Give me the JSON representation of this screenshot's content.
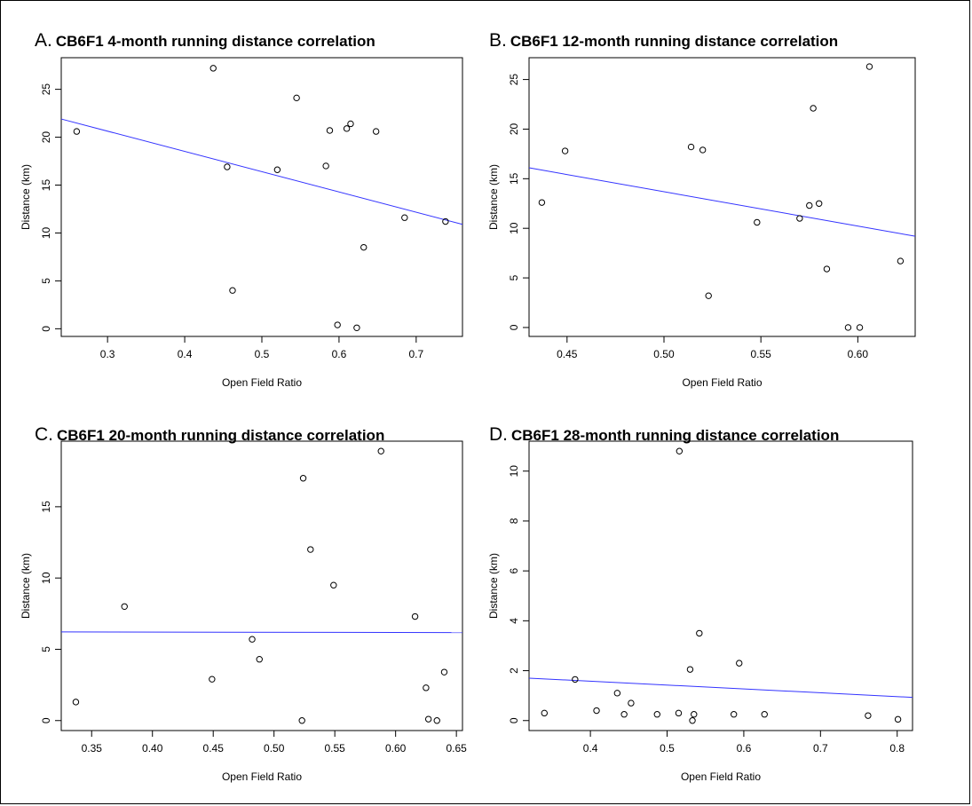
{
  "chart_data": [
    {
      "type": "scatter",
      "letter": "A.",
      "title": "CB6F1 4-month running distance correlation",
      "xlabel": "Open Field Ratio",
      "ylabel": "Distance (km)",
      "xlim": [
        0.24,
        0.76
      ],
      "ylim": [
        -0.8,
        28.3
      ],
      "xticks": [
        0.3,
        0.4,
        0.5,
        0.6,
        0.7
      ],
      "yticks": [
        0,
        5,
        10,
        15,
        20,
        25
      ],
      "xtick_labels": [
        "0.3",
        "0.4",
        "0.5",
        "0.6",
        "0.7"
      ],
      "ytick_labels": [
        "0",
        "5",
        "10",
        "15",
        "20",
        "25"
      ],
      "points": [
        [
          0.26,
          20.6
        ],
        [
          0.437,
          27.2
        ],
        [
          0.455,
          16.9
        ],
        [
          0.462,
          4.0
        ],
        [
          0.52,
          16.6
        ],
        [
          0.545,
          24.1
        ],
        [
          0.583,
          17.0
        ],
        [
          0.588,
          20.7
        ],
        [
          0.598,
          0.4
        ],
        [
          0.61,
          20.9
        ],
        [
          0.615,
          21.4
        ],
        [
          0.623,
          0.1
        ],
        [
          0.632,
          8.5
        ],
        [
          0.648,
          20.6
        ],
        [
          0.685,
          11.6
        ],
        [
          0.738,
          11.2
        ]
      ],
      "fit_line": [
        [
          0.24,
          21.9
        ],
        [
          0.76,
          10.9
        ]
      ],
      "series_color": "#000000",
      "fit_color": "#3333ff",
      "grid": false
    },
    {
      "type": "scatter",
      "letter": "B.",
      "title": "CB6F1 12-month running distance correlation",
      "xlabel": "Open Field Ratio",
      "ylabel": "Distance (km)",
      "xlim": [
        0.4304,
        0.6296
      ],
      "ylim": [
        -0.9,
        27.2
      ],
      "xticks": [
        0.45,
        0.5,
        0.55,
        0.6
      ],
      "yticks": [
        0,
        5,
        10,
        15,
        20,
        25
      ],
      "xtick_labels": [
        "0.45",
        "0.50",
        "0.55",
        "0.60"
      ],
      "ytick_labels": [
        "0",
        "5",
        "10",
        "15",
        "20",
        "25"
      ],
      "points": [
        [
          0.437,
          12.6
        ],
        [
          0.449,
          17.8
        ],
        [
          0.514,
          18.2
        ],
        [
          0.52,
          17.9
        ],
        [
          0.523,
          3.2
        ],
        [
          0.548,
          10.6
        ],
        [
          0.57,
          11.0
        ],
        [
          0.575,
          12.3
        ],
        [
          0.577,
          22.1
        ],
        [
          0.58,
          12.5
        ],
        [
          0.584,
          5.9
        ],
        [
          0.595,
          0.0
        ],
        [
          0.601,
          0.0
        ],
        [
          0.606,
          26.3
        ],
        [
          0.622,
          6.7
        ]
      ],
      "fit_line": [
        [
          0.4304,
          16.1
        ],
        [
          0.6296,
          9.2
        ]
      ],
      "series_color": "#000000",
      "fit_color": "#3333ff",
      "grid": false
    },
    {
      "type": "scatter",
      "letter": "C.",
      "title": "CB6F1 20-month running distance correlation",
      "xlabel": "Open Field Ratio",
      "ylabel": "Distance (km)",
      "xlim": [
        0.325,
        0.655
      ],
      "ylim": [
        -0.7,
        19.6
      ],
      "xticks": [
        0.35,
        0.4,
        0.45,
        0.5,
        0.55,
        0.6,
        0.65
      ],
      "yticks": [
        0,
        5,
        10,
        15
      ],
      "xtick_labels": [
        "0.35",
        "0.40",
        "0.45",
        "0.50",
        "0.55",
        "0.60",
        "0.65"
      ],
      "ytick_labels": [
        "0",
        "5",
        "10",
        "15"
      ],
      "points": [
        [
          0.337,
          1.3
        ],
        [
          0.377,
          8.0
        ],
        [
          0.449,
          2.9
        ],
        [
          0.482,
          5.7
        ],
        [
          0.488,
          4.3
        ],
        [
          0.523,
          0.0
        ],
        [
          0.524,
          17.0
        ],
        [
          0.53,
          12.0
        ],
        [
          0.549,
          9.5
        ],
        [
          0.588,
          18.9
        ],
        [
          0.616,
          7.3
        ],
        [
          0.625,
          2.3
        ],
        [
          0.627,
          0.1
        ],
        [
          0.634,
          0.0
        ],
        [
          0.64,
          3.4
        ]
      ],
      "fit_line": [
        [
          0.325,
          6.22
        ],
        [
          0.655,
          6.17
        ]
      ],
      "series_color": "#000000",
      "fit_color": "#3333ff",
      "grid": false
    },
    {
      "type": "scatter",
      "letter": "D.",
      "title": "CB6F1 28-month running distance correlation",
      "xlabel": "Open Field Ratio",
      "ylabel": "Distance (km)",
      "xlim": [
        0.32,
        0.82
      ],
      "ylim": [
        -0.4,
        11.2
      ],
      "xticks": [
        0.4,
        0.5,
        0.6,
        0.7,
        0.8
      ],
      "yticks": [
        0,
        2,
        4,
        6,
        8,
        10
      ],
      "xtick_labels": [
        "0.4",
        "0.5",
        "0.6",
        "0.7",
        "0.8"
      ],
      "ytick_labels": [
        "0",
        "2",
        "4",
        "6",
        "8",
        "10"
      ],
      "points": [
        [
          0.34,
          0.3
        ],
        [
          0.38,
          1.65
        ],
        [
          0.408,
          0.4
        ],
        [
          0.435,
          1.1
        ],
        [
          0.444,
          0.25
        ],
        [
          0.453,
          0.7
        ],
        [
          0.487,
          0.25
        ],
        [
          0.515,
          0.3
        ],
        [
          0.516,
          10.8
        ],
        [
          0.53,
          2.05
        ],
        [
          0.533,
          0.0
        ],
        [
          0.535,
          0.25
        ],
        [
          0.542,
          3.5
        ],
        [
          0.587,
          0.25
        ],
        [
          0.594,
          2.3
        ],
        [
          0.627,
          0.25
        ],
        [
          0.762,
          0.2
        ],
        [
          0.801,
          0.05
        ]
      ],
      "fit_line": [
        [
          0.32,
          1.7
        ],
        [
          0.82,
          0.93
        ]
      ],
      "series_color": "#000000",
      "fit_color": "#3333ff",
      "grid": false
    }
  ]
}
